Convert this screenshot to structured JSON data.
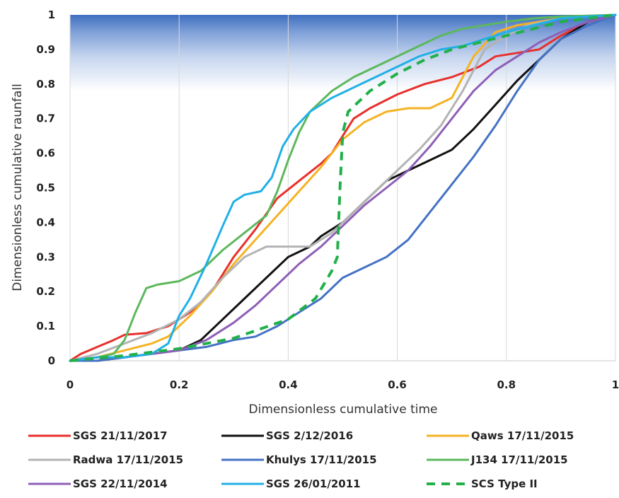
{
  "chart_data": {
    "type": "line",
    "xlabel": "Dimensionless cumulative time",
    "ylabel": "Dimensionless cumulative raunfall",
    "xlim": [
      0,
      1
    ],
    "ylim": [
      0,
      1
    ],
    "x_ticks": [
      "0",
      "0.2",
      "0.4",
      "0.6",
      "0.8",
      "1"
    ],
    "y_ticks": [
      "0",
      "0.1",
      "0.2",
      "0.3",
      "0.4",
      "0.5",
      "0.6",
      "0.7",
      "0.8",
      "0.9",
      "1"
    ],
    "grid": "vertical",
    "legend_position": "bottom",
    "series": [
      {
        "name": "SGS 21/11/2017",
        "color": "#e8302c",
        "dash": "solid",
        "points": [
          [
            0,
            0
          ],
          [
            0.02,
            0.02
          ],
          [
            0.05,
            0.04
          ],
          [
            0.08,
            0.06
          ],
          [
            0.1,
            0.075
          ],
          [
            0.14,
            0.08
          ],
          [
            0.18,
            0.1
          ],
          [
            0.22,
            0.14
          ],
          [
            0.26,
            0.2
          ],
          [
            0.3,
            0.3
          ],
          [
            0.34,
            0.38
          ],
          [
            0.38,
            0.47
          ],
          [
            0.42,
            0.52
          ],
          [
            0.46,
            0.57
          ],
          [
            0.48,
            0.6
          ],
          [
            0.5,
            0.65
          ],
          [
            0.52,
            0.7
          ],
          [
            0.55,
            0.73
          ],
          [
            0.6,
            0.77
          ],
          [
            0.65,
            0.8
          ],
          [
            0.7,
            0.82
          ],
          [
            0.75,
            0.85
          ],
          [
            0.78,
            0.88
          ],
          [
            0.82,
            0.89
          ],
          [
            0.86,
            0.9
          ],
          [
            0.9,
            0.94
          ],
          [
            0.95,
            0.98
          ],
          [
            1,
            1
          ]
        ]
      },
      {
        "name": "SGS 2/12/2016",
        "color": "#111111",
        "dash": "solid",
        "points": [
          [
            0,
            0
          ],
          [
            0.05,
            0
          ],
          [
            0.1,
            0.01
          ],
          [
            0.15,
            0.02
          ],
          [
            0.2,
            0.03
          ],
          [
            0.24,
            0.06
          ],
          [
            0.28,
            0.12
          ],
          [
            0.32,
            0.18
          ],
          [
            0.36,
            0.24
          ],
          [
            0.4,
            0.3
          ],
          [
            0.44,
            0.33
          ],
          [
            0.46,
            0.36
          ],
          [
            0.5,
            0.4
          ],
          [
            0.54,
            0.46
          ],
          [
            0.58,
            0.52
          ],
          [
            0.62,
            0.55
          ],
          [
            0.66,
            0.58
          ],
          [
            0.7,
            0.61
          ],
          [
            0.74,
            0.67
          ],
          [
            0.78,
            0.74
          ],
          [
            0.82,
            0.81
          ],
          [
            0.86,
            0.87
          ],
          [
            0.9,
            0.93
          ],
          [
            0.95,
            0.98
          ],
          [
            1,
            1
          ]
        ]
      },
      {
        "name": "Qaws 17/11/2015",
        "color": "#f5b323",
        "dash": "solid",
        "points": [
          [
            0,
            0
          ],
          [
            0.05,
            0.01
          ],
          [
            0.1,
            0.03
          ],
          [
            0.15,
            0.05
          ],
          [
            0.18,
            0.07
          ],
          [
            0.22,
            0.13
          ],
          [
            0.26,
            0.2
          ],
          [
            0.3,
            0.28
          ],
          [
            0.34,
            0.35
          ],
          [
            0.38,
            0.42
          ],
          [
            0.42,
            0.49
          ],
          [
            0.46,
            0.56
          ],
          [
            0.5,
            0.64
          ],
          [
            0.54,
            0.69
          ],
          [
            0.58,
            0.72
          ],
          [
            0.62,
            0.73
          ],
          [
            0.66,
            0.73
          ],
          [
            0.7,
            0.76
          ],
          [
            0.74,
            0.88
          ],
          [
            0.78,
            0.95
          ],
          [
            0.82,
            0.97
          ],
          [
            0.86,
            0.98
          ],
          [
            0.9,
            0.99
          ],
          [
            1,
            1
          ]
        ]
      },
      {
        "name": "Radwa 17/11/2015",
        "color": "#b3b3b3",
        "dash": "solid",
        "points": [
          [
            0,
            0
          ],
          [
            0.05,
            0.02
          ],
          [
            0.1,
            0.05
          ],
          [
            0.15,
            0.08
          ],
          [
            0.2,
            0.12
          ],
          [
            0.24,
            0.17
          ],
          [
            0.28,
            0.24
          ],
          [
            0.32,
            0.3
          ],
          [
            0.36,
            0.33
          ],
          [
            0.4,
            0.33
          ],
          [
            0.44,
            0.33
          ],
          [
            0.48,
            0.37
          ],
          [
            0.52,
            0.43
          ],
          [
            0.56,
            0.49
          ],
          [
            0.6,
            0.55
          ],
          [
            0.64,
            0.61
          ],
          [
            0.68,
            0.68
          ],
          [
            0.72,
            0.78
          ],
          [
            0.76,
            0.9
          ],
          [
            0.8,
            0.94
          ],
          [
            0.84,
            0.97
          ],
          [
            0.9,
            0.99
          ],
          [
            1,
            1
          ]
        ]
      },
      {
        "name": "Khulys 17/11/2015",
        "color": "#4472c4",
        "dash": "solid",
        "points": [
          [
            0,
            0
          ],
          [
            0.05,
            0
          ],
          [
            0.1,
            0.01
          ],
          [
            0.15,
            0.02
          ],
          [
            0.2,
            0.03
          ],
          [
            0.25,
            0.04
          ],
          [
            0.3,
            0.06
          ],
          [
            0.34,
            0.07
          ],
          [
            0.38,
            0.1
          ],
          [
            0.42,
            0.14
          ],
          [
            0.46,
            0.18
          ],
          [
            0.5,
            0.24
          ],
          [
            0.54,
            0.27
          ],
          [
            0.58,
            0.3
          ],
          [
            0.62,
            0.35
          ],
          [
            0.66,
            0.43
          ],
          [
            0.7,
            0.51
          ],
          [
            0.74,
            0.59
          ],
          [
            0.78,
            0.68
          ],
          [
            0.82,
            0.78
          ],
          [
            0.86,
            0.87
          ],
          [
            0.9,
            0.93
          ],
          [
            0.95,
            0.97
          ],
          [
            1,
            1
          ]
        ]
      },
      {
        "name": "J134 17/11/2015",
        "color": "#5cb85c",
        "dash": "solid",
        "points": [
          [
            0,
            0
          ],
          [
            0.05,
            0.01
          ],
          [
            0.08,
            0.02
          ],
          [
            0.1,
            0.06
          ],
          [
            0.12,
            0.14
          ],
          [
            0.14,
            0.21
          ],
          [
            0.16,
            0.22
          ],
          [
            0.2,
            0.23
          ],
          [
            0.24,
            0.26
          ],
          [
            0.28,
            0.32
          ],
          [
            0.32,
            0.37
          ],
          [
            0.36,
            0.42
          ],
          [
            0.38,
            0.49
          ],
          [
            0.4,
            0.58
          ],
          [
            0.42,
            0.66
          ],
          [
            0.44,
            0.72
          ],
          [
            0.48,
            0.78
          ],
          [
            0.52,
            0.82
          ],
          [
            0.56,
            0.85
          ],
          [
            0.6,
            0.88
          ],
          [
            0.64,
            0.91
          ],
          [
            0.68,
            0.94
          ],
          [
            0.72,
            0.96
          ],
          [
            0.76,
            0.97
          ],
          [
            0.8,
            0.98
          ],
          [
            0.85,
            0.99
          ],
          [
            0.9,
            0.995
          ],
          [
            1,
            1
          ]
        ]
      },
      {
        "name": "SGS 22/11/2014",
        "color": "#8e5fb6",
        "dash": "solid",
        "points": [
          [
            0,
            0
          ],
          [
            0.05,
            0.01
          ],
          [
            0.1,
            0.01
          ],
          [
            0.15,
            0.02
          ],
          [
            0.2,
            0.03
          ],
          [
            0.25,
            0.06
          ],
          [
            0.3,
            0.11
          ],
          [
            0.34,
            0.16
          ],
          [
            0.38,
            0.22
          ],
          [
            0.42,
            0.28
          ],
          [
            0.46,
            0.33
          ],
          [
            0.5,
            0.39
          ],
          [
            0.54,
            0.45
          ],
          [
            0.58,
            0.5
          ],
          [
            0.62,
            0.55
          ],
          [
            0.66,
            0.62
          ],
          [
            0.7,
            0.7
          ],
          [
            0.74,
            0.78
          ],
          [
            0.78,
            0.84
          ],
          [
            0.82,
            0.88
          ],
          [
            0.86,
            0.92
          ],
          [
            0.9,
            0.95
          ],
          [
            0.95,
            0.98
          ],
          [
            1,
            1
          ]
        ]
      },
      {
        "name": "SGS 26/01/2011",
        "color": "#20b0e6",
        "dash": "solid",
        "points": [
          [
            0,
            0
          ],
          [
            0.05,
            0.01
          ],
          [
            0.1,
            0.01
          ],
          [
            0.15,
            0.02
          ],
          [
            0.18,
            0.05
          ],
          [
            0.2,
            0.13
          ],
          [
            0.22,
            0.18
          ],
          [
            0.25,
            0.28
          ],
          [
            0.28,
            0.39
          ],
          [
            0.3,
            0.46
          ],
          [
            0.32,
            0.48
          ],
          [
            0.35,
            0.49
          ],
          [
            0.37,
            0.53
          ],
          [
            0.39,
            0.62
          ],
          [
            0.41,
            0.67
          ],
          [
            0.44,
            0.72
          ],
          [
            0.48,
            0.76
          ],
          [
            0.52,
            0.79
          ],
          [
            0.56,
            0.82
          ],
          [
            0.6,
            0.85
          ],
          [
            0.64,
            0.88
          ],
          [
            0.68,
            0.9
          ],
          [
            0.72,
            0.91
          ],
          [
            0.76,
            0.93
          ],
          [
            0.8,
            0.95
          ],
          [
            0.85,
            0.97
          ],
          [
            0.9,
            0.99
          ],
          [
            1,
            1
          ]
        ]
      },
      {
        "name": "SCS Type II",
        "color": "#22b04a",
        "dash": "dashed",
        "points": [
          [
            0,
            0
          ],
          [
            0.1,
            0.015
          ],
          [
            0.2,
            0.035
          ],
          [
            0.3,
            0.065
          ],
          [
            0.4,
            0.12
          ],
          [
            0.45,
            0.18
          ],
          [
            0.48,
            0.26
          ],
          [
            0.49,
            0.3
          ],
          [
            0.495,
            0.5
          ],
          [
            0.5,
            0.66
          ],
          [
            0.51,
            0.72
          ],
          [
            0.55,
            0.78
          ],
          [
            0.6,
            0.83
          ],
          [
            0.65,
            0.87
          ],
          [
            0.7,
            0.9
          ],
          [
            0.75,
            0.92
          ],
          [
            0.8,
            0.94
          ],
          [
            0.85,
            0.96
          ],
          [
            0.9,
            0.98
          ],
          [
            1,
            1
          ]
        ]
      }
    ]
  }
}
